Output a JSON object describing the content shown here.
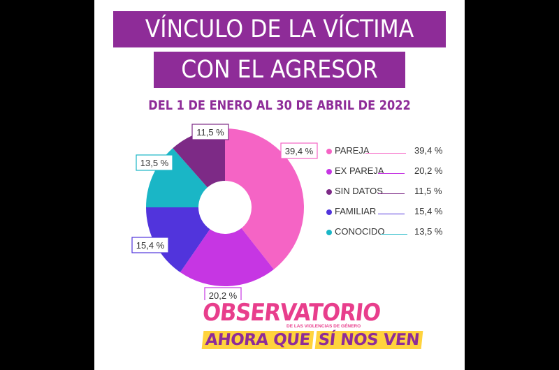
{
  "header": {
    "title_line1": "VÍNCULO DE LA VÍCTIMA",
    "title_line2": "CON EL AGRESOR",
    "subtitle": "DEL 1 DE ENERO AL 30 DE ABRIL DE 2022"
  },
  "chart_data": {
    "type": "pie",
    "donut": true,
    "legend_position": "right",
    "slices": [
      {
        "label": "PAREJA",
        "value": 39.4,
        "value_label": "39,4 %",
        "color": "#f564c5"
      },
      {
        "label": "EX PAREJA",
        "value": 20.2,
        "value_label": "20,2 %",
        "color": "#c636e3"
      },
      {
        "label": "FAMILIAR",
        "value": 15.4,
        "value_label": "15,4 %",
        "color": "#5134dc"
      },
      {
        "label": "CONOCIDO",
        "value": 13.5,
        "value_label": "13,5 %",
        "color": "#1ab6c6"
      },
      {
        "label": "SIN DATOS",
        "value": 11.5,
        "value_label": "11,5 %",
        "color": "#7d2a86"
      }
    ],
    "legend_order": [
      "PAREJA",
      "EX PAREJA",
      "SIN DATOS",
      "FAMILIAR",
      "CONOCIDO"
    ]
  },
  "logo": {
    "line1": "OBSERVATORIO",
    "line2_small": "DE LAS VIOLENCIAS DE GÉNERO",
    "line3a": "AHORA QUE",
    "line3b": "SÍ NOS VEN"
  }
}
